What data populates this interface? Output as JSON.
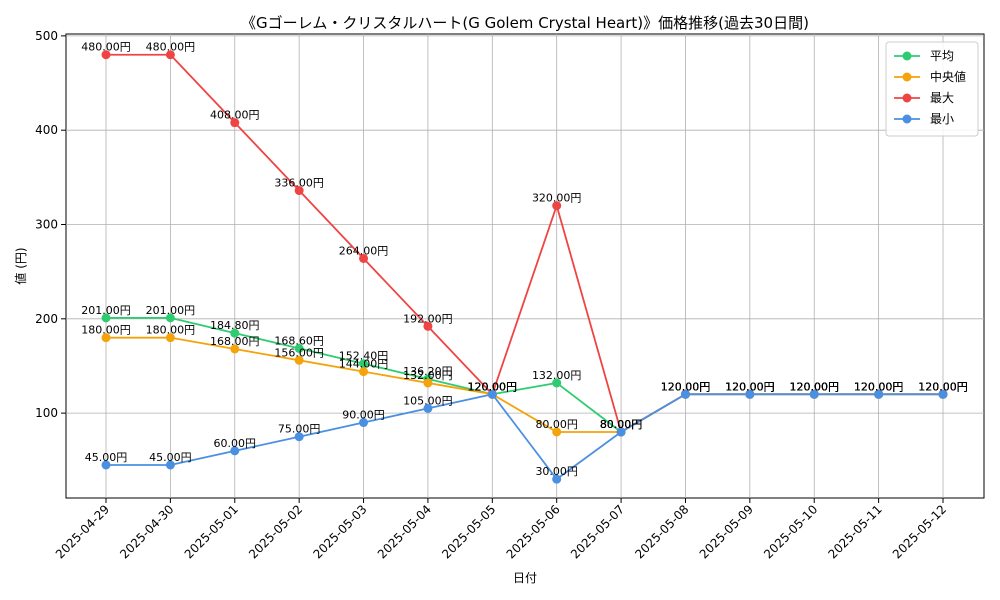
{
  "chart_data": {
    "type": "line",
    "title": "《Gゴーレム・クリスタルハート(G Golem Crystal Heart)》価格推移(過去30日間)",
    "xlabel": "日付",
    "ylabel": "値 (円)",
    "ylim": [
      10,
      502
    ],
    "yticks": [
      100,
      200,
      300,
      400,
      500
    ],
    "grid": true,
    "legend_position": "top-right",
    "categories": [
      "2025-04-29",
      "2025-04-30",
      "2025-05-01",
      "2025-05-02",
      "2025-05-03",
      "2025-05-04",
      "2025-05-05",
      "2025-05-06",
      "2025-05-07",
      "2025-05-08",
      "2025-05-09",
      "2025-05-10",
      "2025-05-11",
      "2025-05-12"
    ],
    "series": [
      {
        "name": "平均",
        "color": "#2ecc71",
        "values": [
          201,
          201,
          184.8,
          168.6,
          152.4,
          136.2,
          120,
          132,
          80,
          120,
          120,
          120,
          120,
          120
        ],
        "labels": [
          "201.00円",
          "201.00円",
          "184.80円",
          "168.60円",
          "152.40円",
          "136.20円",
          "120.00円",
          "132.00円",
          "80.00円",
          "120.00円",
          "120.00円",
          "120.00円",
          "120.00円",
          "120.00円"
        ]
      },
      {
        "name": "中央値",
        "color": "#f5a30a",
        "values": [
          180,
          180,
          168,
          156,
          144,
          132,
          120,
          80,
          80,
          120,
          120,
          120,
          120,
          120
        ],
        "labels": [
          "180.00円",
          "180.00円",
          "168.00円",
          "156.00円",
          "144.00円",
          "132.00円",
          "120.00円",
          "80.00円",
          "80.00円",
          "120.00円",
          "120.00円",
          "120.00円",
          "120.00円",
          "120.00円"
        ]
      },
      {
        "name": "最大",
        "color": "#ef4444",
        "values": [
          480,
          480,
          408,
          336,
          264,
          192,
          120,
          320,
          80,
          120,
          120,
          120,
          120,
          120
        ],
        "labels": [
          "480.00円",
          "480.00円",
          "408.00円",
          "336.00円",
          "264.00円",
          "192.00円",
          "120.00円",
          "320.00円",
          "80.00円",
          "120.00円",
          "120.00円",
          "120.00円",
          "120.00円",
          "120.00円"
        ]
      },
      {
        "name": "最小",
        "color": "#4a90e2",
        "values": [
          45,
          45,
          60,
          75,
          90,
          105,
          120,
          30,
          80,
          120,
          120,
          120,
          120,
          120
        ],
        "labels": [
          "45.00円",
          "45.00円",
          "60.00円",
          "75.00円",
          "90.00円",
          "105.00円",
          "120.00円",
          "30.00円",
          "80.00円",
          "120.00円",
          "120.00円",
          "120.00円",
          "120.00円",
          "120.00円"
        ]
      }
    ]
  }
}
